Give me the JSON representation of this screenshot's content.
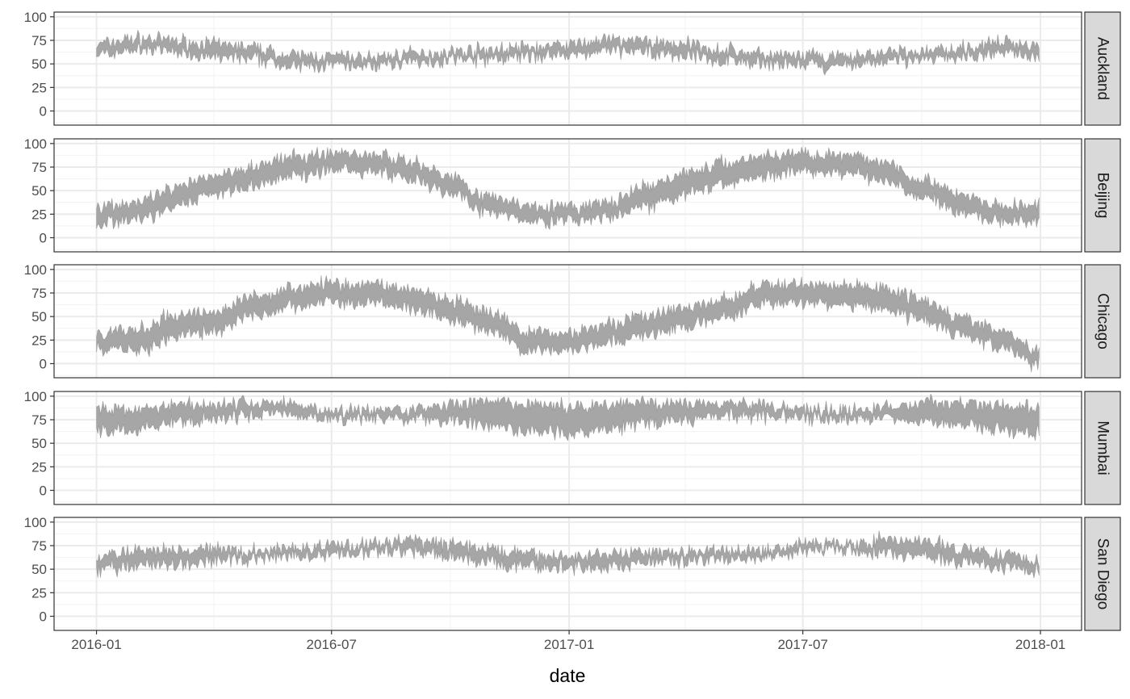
{
  "chart_data": {
    "type": "area",
    "title": "",
    "xlabel": "date",
    "ylabel": "",
    "x_range": [
      "2016-01-01",
      "2017-12-31"
    ],
    "x_tick_labels": [
      "2016-01",
      "2016-07",
      "2017-01",
      "2017-07",
      "2018-01"
    ],
    "x_minor_breaks": [
      "2016-04",
      "2016-10",
      "2017-04",
      "2017-10"
    ],
    "ylim": [
      -15,
      105
    ],
    "y_ticks": [
      0,
      25,
      50,
      75,
      100
    ],
    "grid": true,
    "facet": "rows",
    "fill_color": "#a6a6a6",
    "strip_color": "#d9d9d9",
    "panels": [
      {
        "name": "Auckland",
        "knots": [
          [
            "2016-01-01",
            61,
            70
          ],
          [
            "2016-02-01",
            66,
            76
          ],
          [
            "2016-03-01",
            64,
            74
          ],
          [
            "2016-04-01",
            58,
            70
          ],
          [
            "2016-05-01",
            56,
            66
          ],
          [
            "2016-06-01",
            48,
            58
          ],
          [
            "2016-07-01",
            48,
            57
          ],
          [
            "2016-08-01",
            48,
            56
          ],
          [
            "2016-09-01",
            53,
            60
          ],
          [
            "2016-10-01",
            55,
            62
          ],
          [
            "2016-11-01",
            56,
            64
          ],
          [
            "2016-12-01",
            58,
            66
          ],
          [
            "2017-01-01",
            61,
            70
          ],
          [
            "2017-02-01",
            64,
            74
          ],
          [
            "2017-03-01",
            63,
            73
          ],
          [
            "2017-04-01",
            60,
            70
          ],
          [
            "2017-05-01",
            54,
            64
          ],
          [
            "2017-06-01",
            51,
            59
          ],
          [
            "2017-07-01",
            49,
            57
          ],
          [
            "2017-08-01",
            48,
            56
          ],
          [
            "2017-09-01",
            53,
            61
          ],
          [
            "2017-10-01",
            55,
            62
          ],
          [
            "2017-11-01",
            58,
            66
          ],
          [
            "2017-12-01",
            63,
            72
          ],
          [
            "2017-12-31",
            60,
            70
          ]
        ]
      },
      {
        "name": "Beijing",
        "knots": [
          [
            "2016-01-01",
            17,
            33
          ],
          [
            "2016-02-01",
            20,
            36
          ],
          [
            "2016-03-01",
            32,
            50
          ],
          [
            "2016-04-01",
            48,
            66
          ],
          [
            "2016-05-01",
            56,
            75
          ],
          [
            "2016-06-01",
            66,
            84
          ],
          [
            "2016-07-01",
            73,
            89
          ],
          [
            "2016-08-01",
            72,
            88
          ],
          [
            "2016-09-01",
            64,
            80
          ],
          [
            "2016-10-01",
            48,
            64
          ],
          [
            "2016-11-01",
            28,
            42
          ],
          [
            "2016-12-01",
            20,
            34
          ],
          [
            "2017-01-01",
            18,
            31
          ],
          [
            "2017-02-01",
            22,
            36
          ],
          [
            "2017-03-01",
            34,
            52
          ],
          [
            "2017-04-01",
            48,
            68
          ],
          [
            "2017-05-01",
            58,
            78
          ],
          [
            "2017-06-01",
            67,
            86
          ],
          [
            "2017-07-01",
            72,
            89
          ],
          [
            "2017-08-01",
            70,
            86
          ],
          [
            "2017-09-01",
            62,
            80
          ],
          [
            "2017-10-01",
            46,
            62
          ],
          [
            "2017-11-01",
            28,
            44
          ],
          [
            "2017-12-01",
            18,
            32
          ],
          [
            "2017-12-31",
            18,
            34
          ]
        ]
      },
      {
        "name": "Chicago",
        "knots": [
          [
            "2016-01-01",
            17,
            31
          ],
          [
            "2016-02-01",
            14,
            34
          ],
          [
            "2016-03-01",
            30,
            50
          ],
          [
            "2016-04-01",
            36,
            54
          ],
          [
            "2016-05-01",
            52,
            70
          ],
          [
            "2016-06-01",
            62,
            80
          ],
          [
            "2016-07-01",
            66,
            84
          ],
          [
            "2016-08-01",
            66,
            84
          ],
          [
            "2016-09-01",
            60,
            78
          ],
          [
            "2016-10-01",
            48,
            66
          ],
          [
            "2016-11-01",
            34,
            52
          ],
          [
            "2016-12-01",
            14,
            32
          ],
          [
            "2017-01-01",
            16,
            32
          ],
          [
            "2017-02-01",
            24,
            42
          ],
          [
            "2017-03-01",
            30,
            50
          ],
          [
            "2017-04-01",
            40,
            58
          ],
          [
            "2017-05-01",
            52,
            68
          ],
          [
            "2017-06-01",
            64,
            82
          ],
          [
            "2017-07-01",
            66,
            84
          ],
          [
            "2017-08-01",
            64,
            82
          ],
          [
            "2017-09-01",
            60,
            80
          ],
          [
            "2017-10-01",
            48,
            68
          ],
          [
            "2017-11-01",
            32,
            48
          ],
          [
            "2017-12-01",
            18,
            34
          ],
          [
            "2017-12-31",
            0,
            12
          ]
        ]
      },
      {
        "name": "Mumbai",
        "knots": [
          [
            "2016-01-01",
            64,
            86
          ],
          [
            "2016-02-01",
            66,
            86
          ],
          [
            "2016-03-01",
            72,
            90
          ],
          [
            "2016-04-01",
            76,
            90
          ],
          [
            "2016-05-01",
            80,
            92
          ],
          [
            "2016-06-01",
            82,
            91
          ],
          [
            "2016-07-01",
            78,
            84
          ],
          [
            "2016-08-01",
            77,
            84
          ],
          [
            "2016-09-01",
            77,
            85
          ],
          [
            "2016-10-01",
            74,
            90
          ],
          [
            "2016-11-01",
            68,
            92
          ],
          [
            "2016-12-01",
            64,
            90
          ],
          [
            "2017-01-01",
            62,
            88
          ],
          [
            "2017-02-01",
            66,
            90
          ],
          [
            "2017-03-01",
            72,
            92
          ],
          [
            "2017-04-01",
            76,
            92
          ],
          [
            "2017-05-01",
            80,
            92
          ],
          [
            "2017-06-01",
            80,
            90
          ],
          [
            "2017-07-01",
            78,
            86
          ],
          [
            "2017-08-01",
            78,
            85
          ],
          [
            "2017-09-01",
            77,
            86
          ],
          [
            "2017-10-01",
            74,
            92
          ],
          [
            "2017-11-01",
            70,
            92
          ],
          [
            "2017-12-01",
            64,
            88
          ],
          [
            "2017-12-31",
            62,
            86
          ]
        ]
      },
      {
        "name": "San Diego",
        "knots": [
          [
            "2016-01-01",
            52,
            62
          ],
          [
            "2016-02-01",
            54,
            68
          ],
          [
            "2016-03-01",
            56,
            70
          ],
          [
            "2016-04-01",
            60,
            70
          ],
          [
            "2016-05-01",
            62,
            68
          ],
          [
            "2016-06-01",
            64,
            71
          ],
          [
            "2016-07-01",
            67,
            75
          ],
          [
            "2016-08-01",
            70,
            76
          ],
          [
            "2016-09-01",
            70,
            80
          ],
          [
            "2016-10-01",
            64,
            76
          ],
          [
            "2016-11-01",
            58,
            70
          ],
          [
            "2016-12-01",
            52,
            64
          ],
          [
            "2017-01-01",
            52,
            62
          ],
          [
            "2017-02-01",
            54,
            66
          ],
          [
            "2017-03-01",
            58,
            68
          ],
          [
            "2017-04-01",
            60,
            68
          ],
          [
            "2017-05-01",
            62,
            68
          ],
          [
            "2017-06-01",
            64,
            70
          ],
          [
            "2017-07-01",
            70,
            76
          ],
          [
            "2017-08-01",
            72,
            76
          ],
          [
            "2017-09-01",
            68,
            80
          ],
          [
            "2017-10-01",
            64,
            78
          ],
          [
            "2017-11-01",
            58,
            72
          ],
          [
            "2017-12-01",
            54,
            66
          ],
          [
            "2017-12-31",
            50,
            60
          ]
        ]
      }
    ]
  }
}
